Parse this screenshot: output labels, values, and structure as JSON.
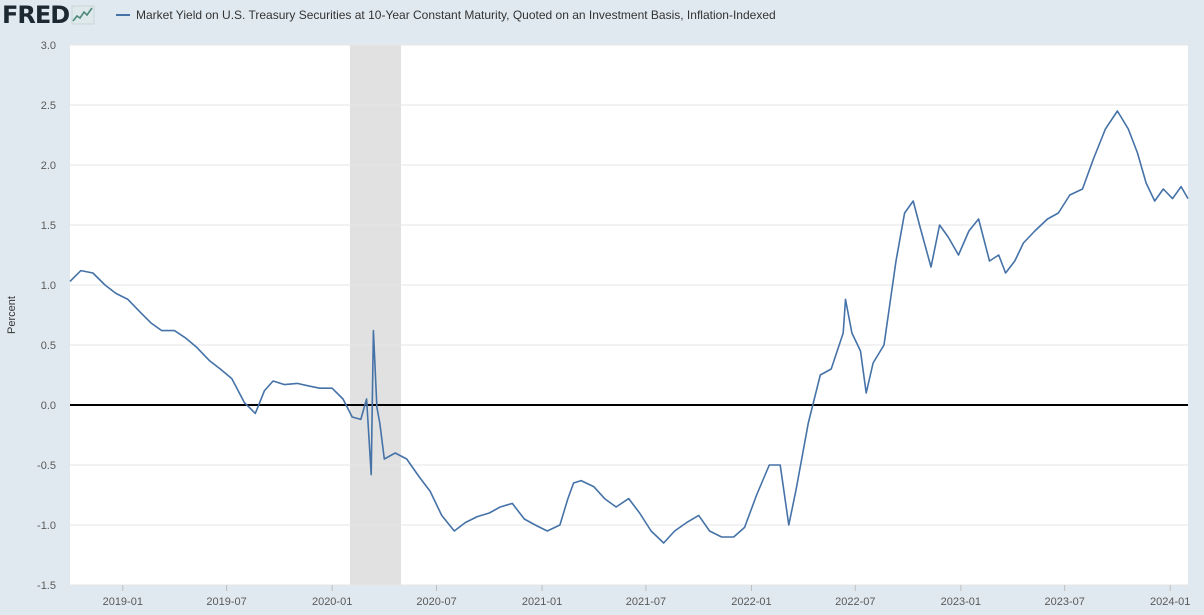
{
  "brand": {
    "logo_text": "FRED"
  },
  "colors": {
    "series": "#4572a7",
    "zero_line": "#000000",
    "recession": "#e1e1e1",
    "plot_bg": "#ffffff",
    "grid": "#e6e6e6"
  },
  "chart_data": {
    "type": "line",
    "title": "",
    "series": [
      {
        "name": "Market Yield on U.S. Treasury Securities at 10-Year Constant Maturity, Quoted on an Investment Basis, Inflation-Indexed",
        "x": [
          "2018-10-01",
          "2018-10-20",
          "2018-11-10",
          "2018-12-01",
          "2018-12-20",
          "2019-01-10",
          "2019-02-01",
          "2019-02-20",
          "2019-03-10",
          "2019-04-01",
          "2019-04-20",
          "2019-05-10",
          "2019-06-01",
          "2019-06-20",
          "2019-07-10",
          "2019-08-01",
          "2019-08-20",
          "2019-09-05",
          "2019-09-20",
          "2019-10-10",
          "2019-11-01",
          "2019-11-20",
          "2019-12-10",
          "2020-01-01",
          "2020-01-20",
          "2020-02-05",
          "2020-02-20",
          "2020-03-01",
          "2020-03-09",
          "2020-03-13",
          "2020-03-19",
          "2020-03-24",
          "2020-04-01",
          "2020-04-20",
          "2020-05-10",
          "2020-06-01",
          "2020-06-20",
          "2020-07-10",
          "2020-08-01",
          "2020-08-20",
          "2020-09-10",
          "2020-10-01",
          "2020-10-20",
          "2020-11-10",
          "2020-12-01",
          "2020-12-20",
          "2021-01-10",
          "2021-02-01",
          "2021-02-15",
          "2021-02-25",
          "2021-03-10",
          "2021-04-01",
          "2021-04-20",
          "2021-05-10",
          "2021-06-01",
          "2021-06-20",
          "2021-07-10",
          "2021-08-01",
          "2021-08-20",
          "2021-09-10",
          "2021-10-01",
          "2021-10-20",
          "2021-11-10",
          "2021-12-01",
          "2021-12-20",
          "2022-01-10",
          "2022-02-01",
          "2022-02-20",
          "2022-03-07",
          "2022-03-20",
          "2022-04-10",
          "2022-05-01",
          "2022-05-20",
          "2022-06-10",
          "2022-06-14",
          "2022-06-25",
          "2022-07-10",
          "2022-07-20",
          "2022-08-01",
          "2022-08-20",
          "2022-09-10",
          "2022-09-25",
          "2022-10-10",
          "2022-10-21",
          "2022-11-10",
          "2022-11-25",
          "2022-12-10",
          "2022-12-28",
          "2023-01-15",
          "2023-02-01",
          "2023-02-20",
          "2023-03-08",
          "2023-03-20",
          "2023-04-05",
          "2023-04-20",
          "2023-05-10",
          "2023-06-01",
          "2023-06-20",
          "2023-07-10",
          "2023-08-01",
          "2023-08-20",
          "2023-09-10",
          "2023-10-01",
          "2023-10-20",
          "2023-11-05",
          "2023-11-20",
          "2023-12-05",
          "2023-12-20",
          "2024-01-05",
          "2024-01-20",
          "2024-02-01"
        ],
        "y": [
          1.03,
          1.12,
          1.1,
          1.0,
          0.93,
          0.88,
          0.77,
          0.68,
          0.62,
          0.62,
          0.56,
          0.48,
          0.37,
          0.3,
          0.22,
          0.02,
          -0.07,
          0.12,
          0.2,
          0.17,
          0.18,
          0.16,
          0.14,
          0.14,
          0.05,
          -0.1,
          -0.12,
          0.05,
          -0.58,
          0.62,
          -0.02,
          -0.15,
          -0.45,
          -0.4,
          -0.45,
          -0.6,
          -0.72,
          -0.92,
          -1.05,
          -0.98,
          -0.93,
          -0.9,
          -0.85,
          -0.82,
          -0.95,
          -1.0,
          -1.05,
          -1.0,
          -0.78,
          -0.65,
          -0.63,
          -0.68,
          -0.78,
          -0.85,
          -0.78,
          -0.9,
          -1.05,
          -1.15,
          -1.05,
          -0.98,
          -0.92,
          -1.05,
          -1.1,
          -1.1,
          -1.02,
          -0.75,
          -0.5,
          -0.5,
          -1.0,
          -0.7,
          -0.15,
          0.25,
          0.3,
          0.6,
          0.88,
          0.6,
          0.45,
          0.1,
          0.35,
          0.5,
          1.2,
          1.6,
          1.7,
          1.5,
          1.15,
          1.5,
          1.4,
          1.25,
          1.45,
          1.55,
          1.2,
          1.25,
          1.1,
          1.2,
          1.35,
          1.45,
          1.55,
          1.6,
          1.75,
          1.8,
          2.05,
          2.3,
          2.45,
          2.3,
          2.1,
          1.85,
          1.7,
          1.8,
          1.72,
          1.82,
          1.72
        ]
      }
    ],
    "xlabel": "",
    "ylabel": "Percent",
    "xlim": [
      "2018-10-01",
      "2024-02-01"
    ],
    "ylim": [
      -1.5,
      3.0
    ],
    "yticks": [
      "3.0",
      "2.5",
      "2.0",
      "1.5",
      "1.0",
      "0.5",
      "0.0",
      "-0.5",
      "-1.0",
      "-1.5"
    ],
    "ytick_values": [
      3.0,
      2.5,
      2.0,
      1.5,
      1.0,
      0.5,
      0.0,
      -0.5,
      -1.0,
      -1.5
    ],
    "xticks": [
      "2019-01",
      "2019-07",
      "2020-01",
      "2020-07",
      "2021-01",
      "2021-07",
      "2022-01",
      "2022-07",
      "2023-01",
      "2023-07",
      "2024-01"
    ],
    "xtick_dates": [
      "2019-01-01",
      "2019-07-01",
      "2020-01-01",
      "2020-07-01",
      "2021-01-01",
      "2021-07-01",
      "2022-01-01",
      "2022-07-01",
      "2023-01-01",
      "2023-07-01",
      "2024-01-01"
    ],
    "recession": {
      "start": "2020-02-01",
      "end": "2020-04-30"
    },
    "reference_line": 0.0,
    "grid": true,
    "legend": "top-left"
  }
}
